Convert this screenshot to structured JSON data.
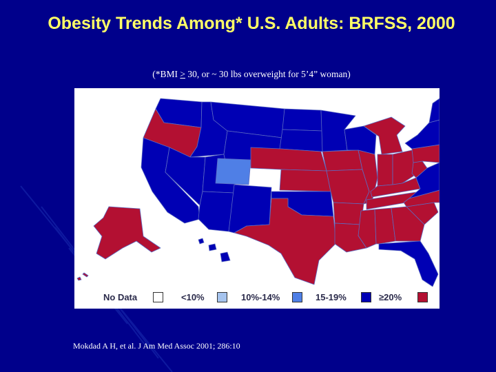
{
  "slide": {
    "title": "Obesity Trends Among* U.S. Adults: BRFSS, 2000",
    "subtitle_prefix": "(*BMI ",
    "subtitle_symbol": ">",
    "subtitle_rest": " 30, or ~ 30 lbs overweight for 5’4” woman)",
    "citation": "Mokdad A H, et al. J Am Med Assoc 2001; 286:10"
  },
  "legend": {
    "items": [
      {
        "label": "No Data",
        "color": "#ffffff"
      },
      {
        "label": "<10%",
        "color": "#a6c4ee"
      },
      {
        "label": "10%-14%",
        "color": "#4f7fe6"
      },
      {
        "label": "15-19%",
        "color": "#0000b4"
      },
      {
        "label": "≥20%",
        "color": "#b31032"
      }
    ]
  },
  "colors": {
    "background": "#00008b",
    "title": "#ffff66",
    "low_blue": "#0000b4",
    "light_blue": "#4f7fe6",
    "red": "#b31032"
  },
  "map": {
    "regions": [
      {
        "name": "washington",
        "category": "15-19%"
      },
      {
        "name": "oregon",
        "category": "≥20%"
      },
      {
        "name": "california",
        "category": "15-19%"
      },
      {
        "name": "idaho",
        "category": "15-19%"
      },
      {
        "name": "nevada",
        "category": "15-19%"
      },
      {
        "name": "utah",
        "category": "15-19%"
      },
      {
        "name": "arizona",
        "category": "15-19%"
      },
      {
        "name": "montana",
        "category": "15-19%"
      },
      {
        "name": "wyoming",
        "category": "15-19%"
      },
      {
        "name": "colorado",
        "category": "10%-14%"
      },
      {
        "name": "new-mexico",
        "category": "15-19%"
      },
      {
        "name": "north-dakota",
        "category": "15-19%"
      },
      {
        "name": "south-dakota",
        "category": "15-19%"
      },
      {
        "name": "nebraska",
        "category": "≥20%"
      },
      {
        "name": "kansas",
        "category": "≥20%"
      },
      {
        "name": "oklahoma",
        "category": "15-19%"
      },
      {
        "name": "texas",
        "category": "≥20%"
      },
      {
        "name": "minnesota",
        "category": "15-19%"
      },
      {
        "name": "iowa",
        "category": "≥20%"
      },
      {
        "name": "missouri",
        "category": "≥20%"
      },
      {
        "name": "arkansas",
        "category": "≥20%"
      },
      {
        "name": "louisiana",
        "category": "≥20%"
      },
      {
        "name": "wisconsin",
        "category": "15-19%"
      },
      {
        "name": "illinois",
        "category": "≥20%"
      },
      {
        "name": "michigan",
        "category": "≥20%"
      },
      {
        "name": "indiana",
        "category": "≥20%"
      },
      {
        "name": "ohio",
        "category": "≥20%"
      },
      {
        "name": "kentucky",
        "category": "≥20%"
      },
      {
        "name": "tennessee",
        "category": "≥20%"
      },
      {
        "name": "mississippi",
        "category": "≥20%"
      },
      {
        "name": "alabama",
        "category": "≥20%"
      },
      {
        "name": "georgia",
        "category": "≥20%"
      },
      {
        "name": "florida",
        "category": "15-19%"
      },
      {
        "name": "south-carolina",
        "category": "≥20%"
      },
      {
        "name": "north-carolina",
        "category": "≥20%"
      },
      {
        "name": "virginia",
        "category": "15-19%"
      },
      {
        "name": "west-virginia",
        "category": "≥20%"
      },
      {
        "name": "pennsylvania",
        "category": "≥20%"
      },
      {
        "name": "new-york",
        "category": "15-19%"
      },
      {
        "name": "new-england",
        "category": "15-19%"
      },
      {
        "name": "alaska",
        "category": "≥20%"
      },
      {
        "name": "hawaii",
        "category": "15-19%"
      }
    ]
  }
}
